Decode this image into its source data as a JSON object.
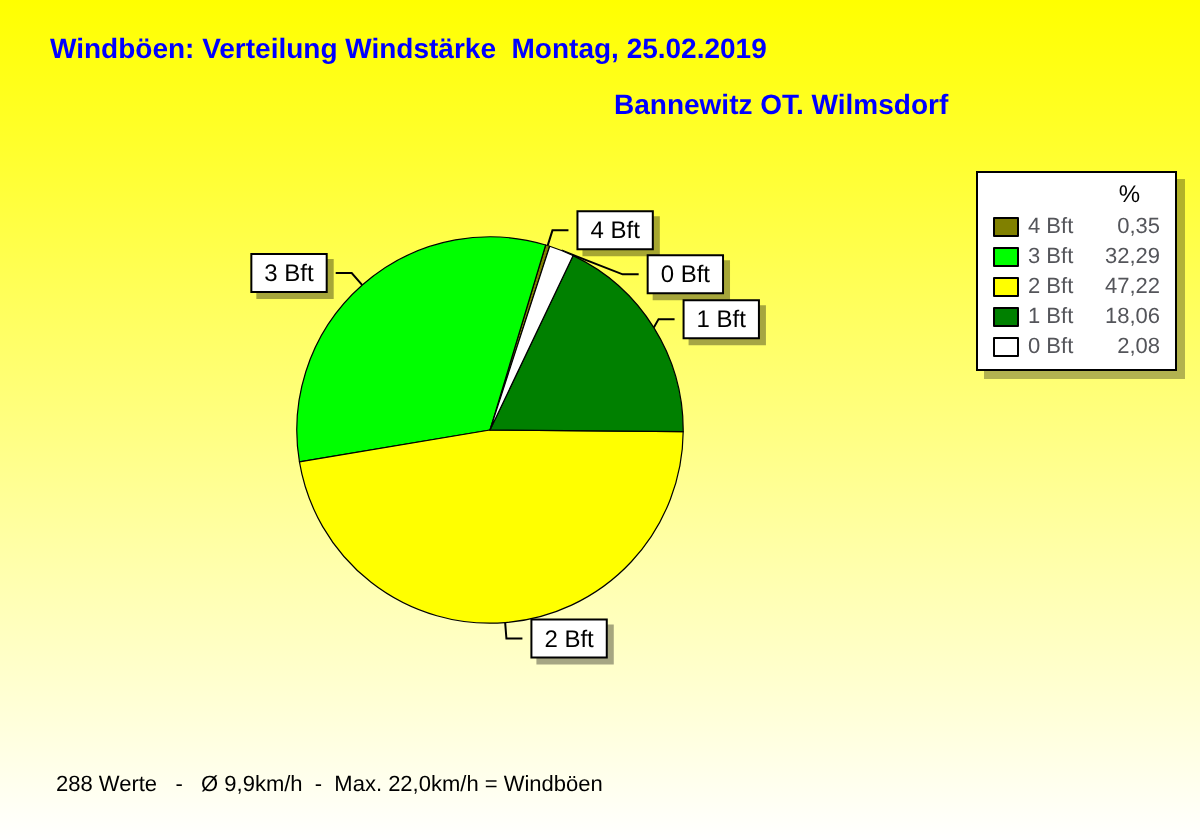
{
  "chart_data": {
    "type": "pie",
    "title": "Windböen: Verteilung Windstärke  Montag, 25.02.2019",
    "subtitle": "Bannewitz OT. Wilmsdorf",
    "legend_title": "%",
    "legend": "top right",
    "categories": [
      "4 Bft",
      "3 Bft",
      "2 Bft",
      "1 Bft",
      "0 Bft"
    ],
    "values": [
      0.35,
      32.29,
      47.22,
      18.06,
      2.08
    ],
    "value_labels": [
      "0,35",
      "32,29",
      "47,22",
      "18,06",
      "2,08"
    ],
    "colors": [
      "#808000",
      "#00ff00",
      "#ffff00",
      "#008000",
      "#ffffff"
    ],
    "annotations": [
      "288 Werte   -   Ø 9,9km/h  -  Max. 22,0km/h = Windböen"
    ]
  }
}
